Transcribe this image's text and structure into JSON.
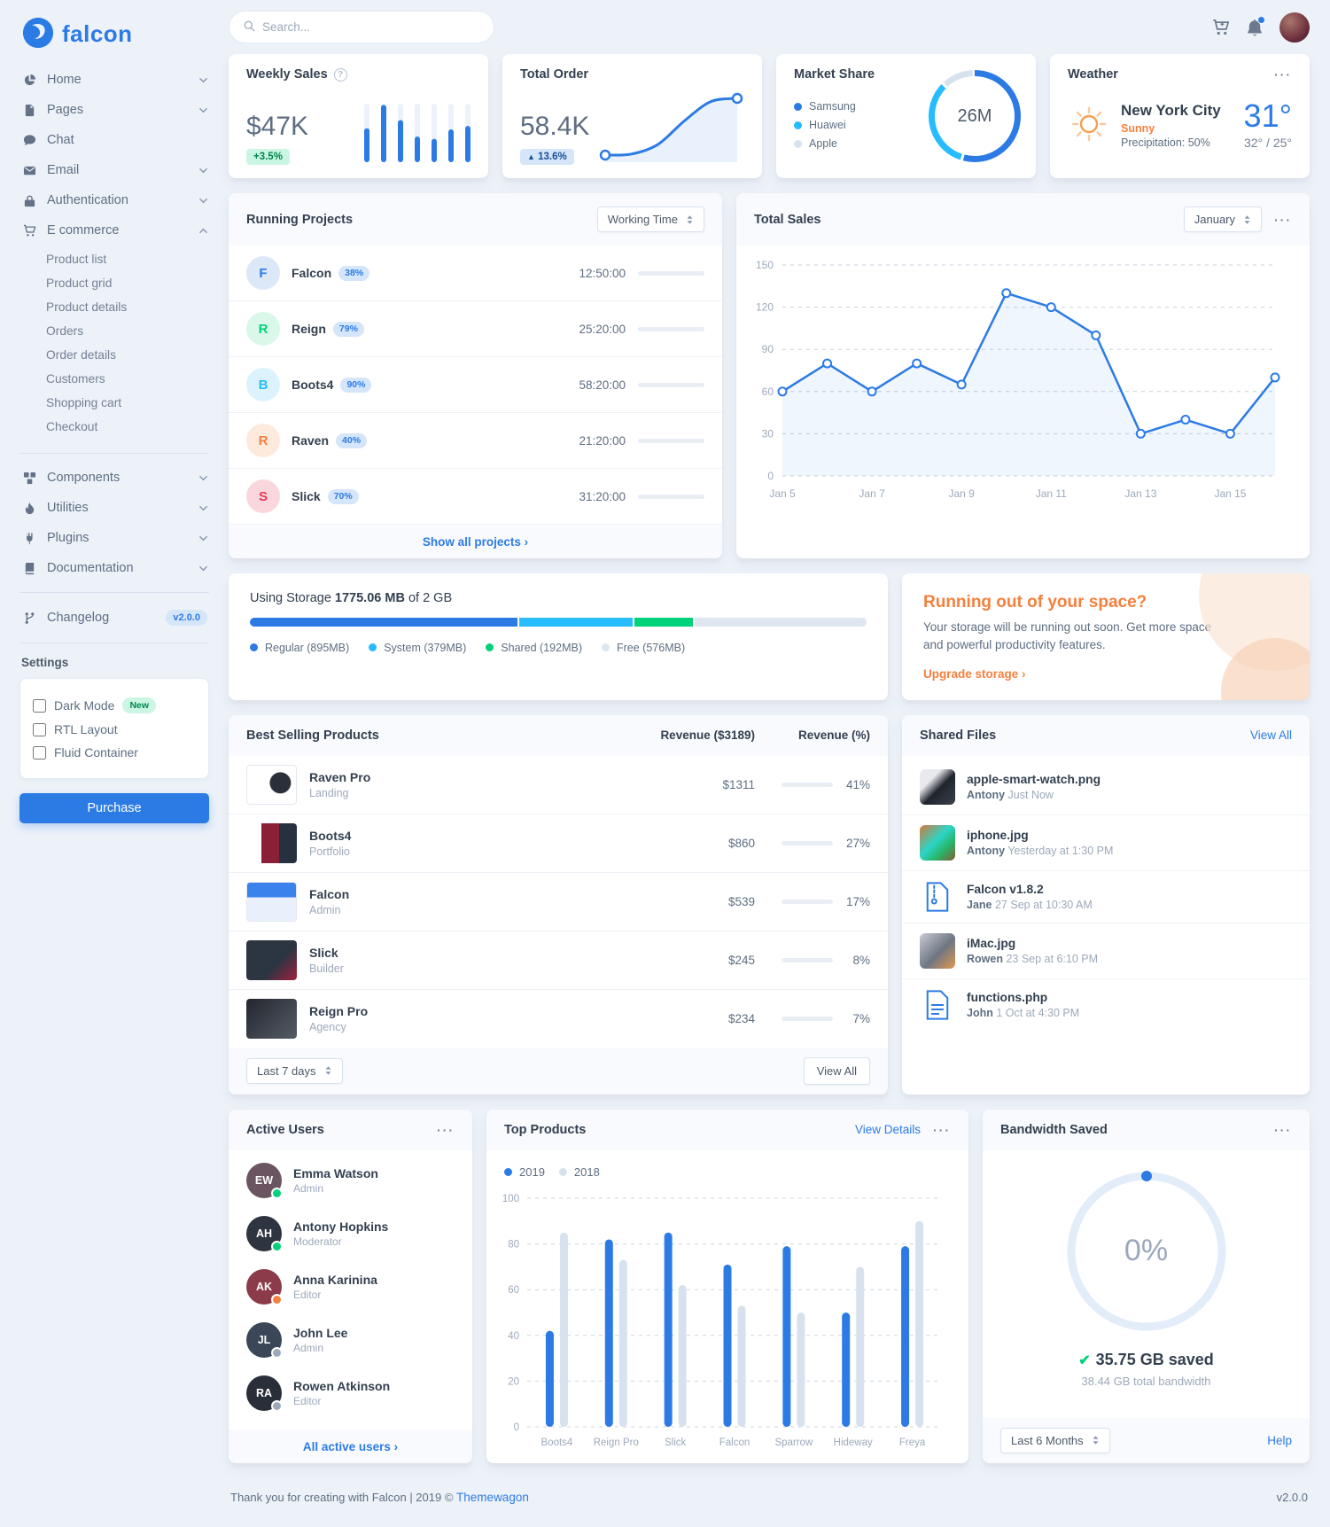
{
  "brand": {
    "name": "falcon"
  },
  "topbar": {
    "search_placeholder": "Search..."
  },
  "sidebar": {
    "items": [
      {
        "label": "Home"
      },
      {
        "label": "Pages"
      },
      {
        "label": "Chat"
      },
      {
        "label": "Email"
      },
      {
        "label": "Authentication"
      },
      {
        "label": "E commerce"
      },
      {
        "label": "Components"
      },
      {
        "label": "Utilities"
      },
      {
        "label": "Plugins"
      },
      {
        "label": "Documentation"
      },
      {
        "label": "Changelog",
        "badge": "v2.0.0"
      }
    ],
    "ecommerce_children": [
      "Product list",
      "Product grid",
      "Product details",
      "Orders",
      "Order details",
      "Customers",
      "Shopping cart",
      "Checkout"
    ],
    "settings": {
      "title": "Settings",
      "options": [
        {
          "label": "Dark Mode",
          "badge": "New"
        },
        {
          "label": "RTL Layout"
        },
        {
          "label": "Fluid Container"
        }
      ],
      "purchase_label": "Purchase"
    }
  },
  "kpi": {
    "weekly_sales": {
      "title": "Weekly Sales",
      "value": "$47K",
      "badge": "+3.5%"
    },
    "total_order": {
      "title": "Total Order",
      "value": "58.4K",
      "badge": "13.6%"
    },
    "market_share": {
      "title": "Market Share",
      "total": "26M",
      "legend": [
        {
          "label": "Samsung",
          "color": "#2c7be5"
        },
        {
          "label": "Huawei",
          "color": "#27bcfd"
        },
        {
          "label": "Apple",
          "color": "#d8e2ef"
        }
      ]
    },
    "weather": {
      "title": "Weather",
      "city": "New York City",
      "condition": "Sunny",
      "precipitation": "Precipitation: 50%",
      "temp": "31°",
      "range": "32° / 25°"
    }
  },
  "running_projects": {
    "title": "Running Projects",
    "filter": "Working Time",
    "projects": [
      {
        "letter": "F",
        "name": "Falcon",
        "progress_label": "38%",
        "progress_pct": 38,
        "time": "12:50:00",
        "avatar_color": "#2c7be5",
        "avatar_bg": "#dce7f8"
      },
      {
        "letter": "R",
        "name": "Reign",
        "progress_label": "79%",
        "progress_pct": 79,
        "time": "25:20:00",
        "avatar_color": "#00d27a",
        "avatar_bg": "#d9f8ea"
      },
      {
        "letter": "B",
        "name": "Boots4",
        "progress_label": "90%",
        "progress_pct": 90,
        "time": "58:20:00",
        "avatar_color": "#27bcfd",
        "avatar_bg": "#dcf3fd"
      },
      {
        "letter": "R",
        "name": "Raven",
        "progress_label": "40%",
        "progress_pct": 40,
        "time": "21:20:00",
        "avatar_color": "#f5803e",
        "avatar_bg": "#fdeadd"
      },
      {
        "letter": "S",
        "name": "Slick",
        "progress_label": "70%",
        "progress_pct": 70,
        "time": "31:20:00",
        "avatar_color": "#e63757",
        "avatar_bg": "#fad7dd"
      }
    ],
    "footer_link": "Show all projects"
  },
  "total_sales_card": {
    "title": "Total Sales",
    "month": "January"
  },
  "storage": {
    "prefix": "Using Storage",
    "used": "1775.06 MB",
    "suffix": "of 2 GB",
    "segments": [
      {
        "label": "Regular (895MB)",
        "pct": 43.7,
        "color": "#2c7be5"
      },
      {
        "label": "System (379MB)",
        "pct": 18.5,
        "color": "#27bcfd"
      },
      {
        "label": "Shared (192MB)",
        "pct": 9.4,
        "color": "#00d27a"
      },
      {
        "label": "Free (576MB)",
        "pct": 28.1,
        "color": "#dde6f1"
      }
    ]
  },
  "upgrade": {
    "title": "Running out of your space?",
    "body": "Your storage will be running out soon. Get more space and powerful productivity features.",
    "link": "Upgrade storage"
  },
  "best_selling": {
    "title": "Best Selling Products",
    "col_revenue": "Revenue ($3189)",
    "col_pct": "Revenue (%)",
    "products": [
      {
        "name": "Raven Pro",
        "category": "Landing",
        "revenue": "$1311",
        "pct_label": "41%",
        "pct": 41
      },
      {
        "name": "Boots4",
        "category": "Portfolio",
        "revenue": "$860",
        "pct_label": "27%",
        "pct": 27
      },
      {
        "name": "Falcon",
        "category": "Admin",
        "revenue": "$539",
        "pct_label": "17%",
        "pct": 17
      },
      {
        "name": "Slick",
        "category": "Builder",
        "revenue": "$245",
        "pct_label": "8%",
        "pct": 8
      },
      {
        "name": "Reign Pro",
        "category": "Agency",
        "revenue": "$234",
        "pct_label": "7%",
        "pct": 7
      }
    ],
    "filter": "Last 7 days",
    "view_all": "View All"
  },
  "shared_files": {
    "title": "Shared Files",
    "view_all": "View All",
    "files": [
      {
        "name": "apple-smart-watch.png",
        "user": "Antony",
        "time": "Just Now"
      },
      {
        "name": "iphone.jpg",
        "user": "Antony",
        "time": "Yesterday at 1:30 PM"
      },
      {
        "name": "Falcon v1.8.2",
        "user": "Jane",
        "time": "27 Sep at 10:30 AM"
      },
      {
        "name": "iMac.jpg",
        "user": "Rowen",
        "time": "23 Sep at 6:10 PM"
      },
      {
        "name": "functions.php",
        "user": "John",
        "time": "1 Oct at 4:30 PM"
      }
    ]
  },
  "active_users": {
    "title": "Active Users",
    "users": [
      {
        "name": "Emma Watson",
        "role": "Admin",
        "initials": "EW",
        "avatar_color": "#6b5560",
        "status_color": "#00d27a"
      },
      {
        "name": "Antony Hopkins",
        "role": "Moderator",
        "initials": "AH",
        "avatar_color": "#2e3440",
        "status_color": "#00d27a"
      },
      {
        "name": "Anna Karinina",
        "role": "Editor",
        "initials": "AK",
        "avatar_color": "#8c3b4a",
        "status_color": "#f5803e"
      },
      {
        "name": "John Lee",
        "role": "Admin",
        "initials": "JL",
        "avatar_color": "#3b4656",
        "status_color": "#9da9bb"
      },
      {
        "name": "Rowen Atkinson",
        "role": "Editor",
        "initials": "RA",
        "avatar_color": "#2a2e38",
        "status_color": "#9da9bb"
      }
    ],
    "footer_link": "All active users"
  },
  "top_products_card": {
    "title": "Top Products",
    "view_details": "View Details",
    "legend": [
      {
        "label": "2019",
        "color": "#2c7be5"
      },
      {
        "label": "2018",
        "color": "#d8e2ef"
      }
    ]
  },
  "bandwidth": {
    "title": "Bandwidth Saved",
    "value": "0%",
    "saved": "35.75 GB saved",
    "total": "38.44 GB total bandwidth",
    "filter": "Last 6 Months",
    "help": "Help"
  },
  "footer": {
    "thanks": "Thank you for creating with Falcon | 2019 ©",
    "brand_link": "Themewagon",
    "version": "v2.0.0"
  },
  "chart_data": [
    {
      "id": "weekly_sales",
      "type": "bar",
      "values": [
        58,
        98,
        72,
        44,
        40,
        56,
        62
      ],
      "ylim": [
        0,
        100
      ],
      "title": "Weekly Sales spark bars",
      "color": "#2c7be5",
      "track_color": "#edf2fa"
    },
    {
      "id": "total_order",
      "type": "line",
      "values": [
        10,
        11,
        20,
        42,
        60,
        63
      ],
      "title": "Total Order spark line",
      "color": "#2c7be5"
    },
    {
      "id": "market_share",
      "type": "pie",
      "labels": [
        "Samsung",
        "Huawei",
        "Apple"
      ],
      "values": [
        55,
        33,
        12
      ],
      "colors": [
        "#2c7be5",
        "#27bcfd",
        "#d8e2ef"
      ],
      "center_label": "26M"
    },
    {
      "id": "total_sales",
      "type": "line",
      "x_labels": [
        "Jan 5",
        "Jan 7",
        "Jan 9",
        "Jan 11",
        "Jan 13",
        "Jan 15"
      ],
      "x_label_indices": [
        0,
        2,
        4,
        6,
        8,
        10
      ],
      "values": [
        60,
        80,
        60,
        80,
        65,
        130,
        120,
        100,
        30,
        40,
        30,
        70
      ],
      "ylim": [
        0,
        150
      ],
      "yticks": [
        0,
        30,
        60,
        90,
        120,
        150
      ],
      "grid": "dashed",
      "color": "#2c7be5",
      "title": "Total Sales - January"
    },
    {
      "id": "top_products",
      "type": "bar",
      "categories": [
        "Boots4",
        "Reign Pro",
        "Slick",
        "Falcon",
        "Sparrow",
        "Hideway",
        "Freya"
      ],
      "series": [
        {
          "name": "2019",
          "values": [
            42,
            82,
            85,
            71,
            79,
            50,
            79
          ],
          "color": "#2c7be5"
        },
        {
          "name": "2018",
          "values": [
            85,
            73,
            62,
            53,
            50,
            70,
            90
          ],
          "color": "#d8e2ef"
        }
      ],
      "ylim": [
        0,
        100
      ],
      "yticks": [
        0,
        20,
        40,
        60,
        80,
        100
      ],
      "grid": "dashed",
      "legend_position": "top-left",
      "title": "Top Products 2019 vs 2018"
    },
    {
      "id": "bandwidth_gauge",
      "type": "gauge",
      "value": 0,
      "max": 100,
      "label": "0%",
      "track_color": "#e3ecf9",
      "color": "#2c7be5"
    }
  ]
}
